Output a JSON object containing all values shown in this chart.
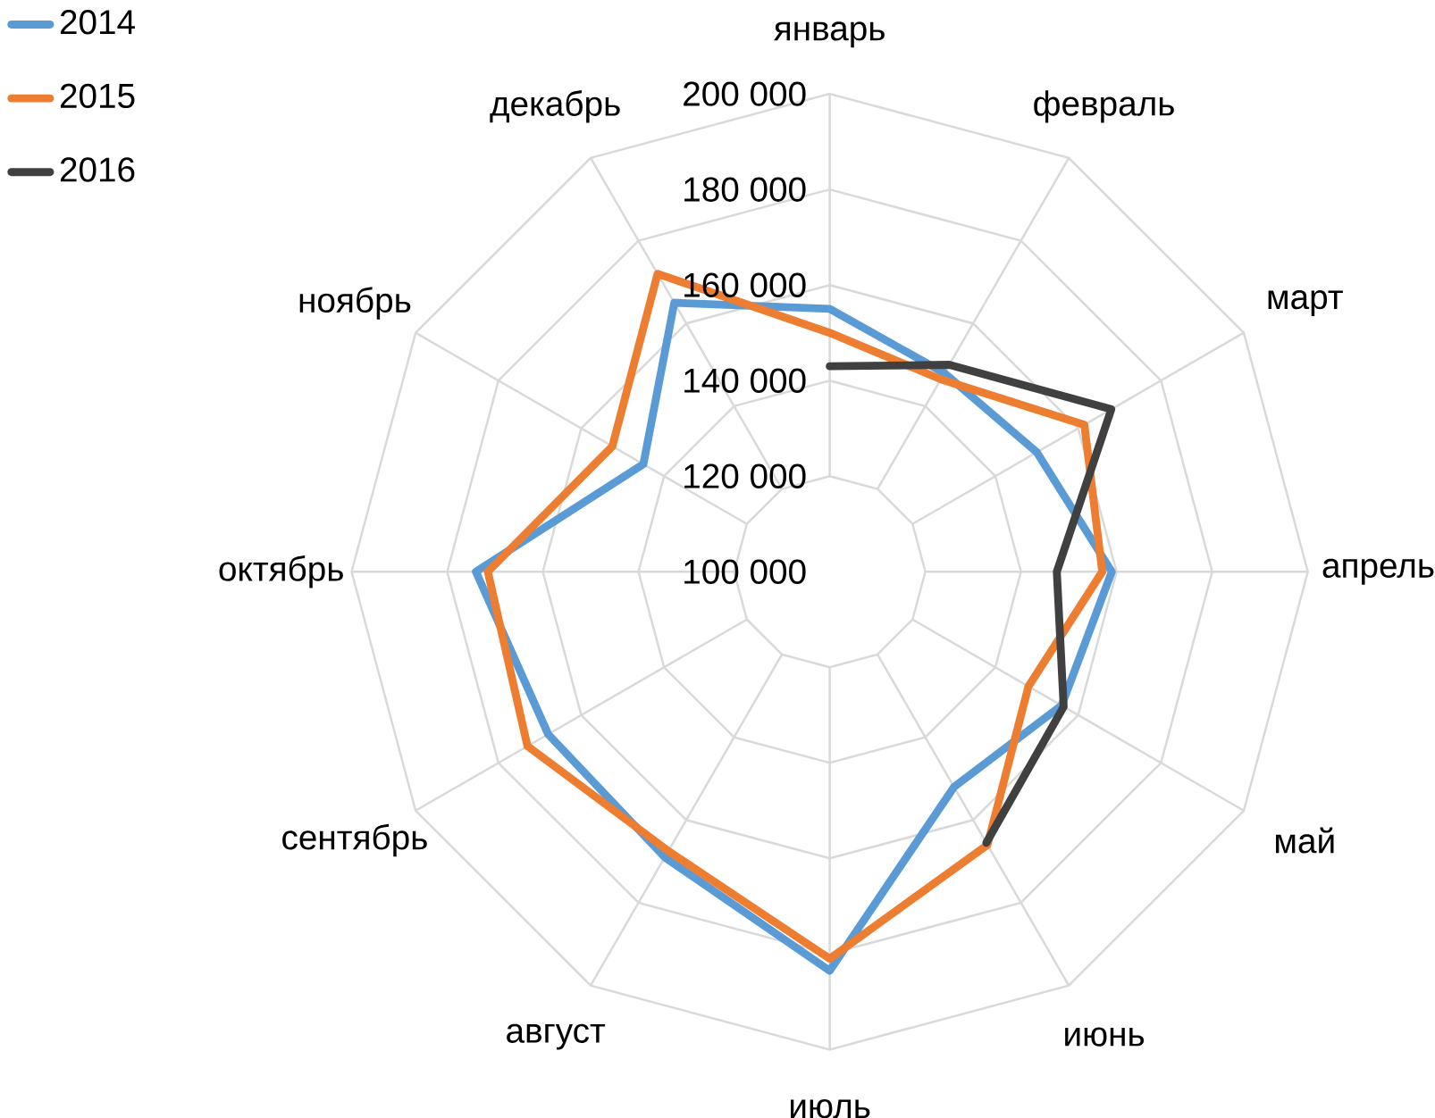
{
  "chart_data": {
    "type": "radar",
    "categories": [
      "январь",
      "февраль",
      "март",
      "апрель",
      "май",
      "июнь",
      "июль",
      "август",
      "сентябрь",
      "октябрь",
      "ноябрь",
      "декабрь"
    ],
    "series": [
      {
        "name": "2014",
        "color": "#5b9bd5",
        "values": [
          155000,
          148000,
          150000,
          159000,
          156000,
          152000,
          183500,
          169000,
          168000,
          174000,
          145000,
          165000
        ]
      },
      {
        "name": "2015",
        "color": "#ed7d31",
        "values": [
          150000,
          146500,
          161500,
          157000,
          148000,
          166000,
          181000,
          167500,
          173000,
          171500,
          152500,
          172000
        ]
      },
      {
        "name": "2016",
        "color": "#404040",
        "values": [
          143000,
          150000,
          168000,
          147500,
          156500,
          165500,
          null,
          null,
          null,
          null,
          null,
          null
        ]
      }
    ],
    "ylim": [
      100000,
      200000
    ],
    "yticks": [
      {
        "value": 100000,
        "label": "100 000"
      },
      {
        "value": 120000,
        "label": "120 000"
      },
      {
        "value": 140000,
        "label": "140 000"
      },
      {
        "value": 160000,
        "label": "160 000"
      },
      {
        "value": 180000,
        "label": "180 000"
      },
      {
        "value": 200000,
        "label": "200 000"
      }
    ],
    "grid": true,
    "legend": "top left"
  }
}
